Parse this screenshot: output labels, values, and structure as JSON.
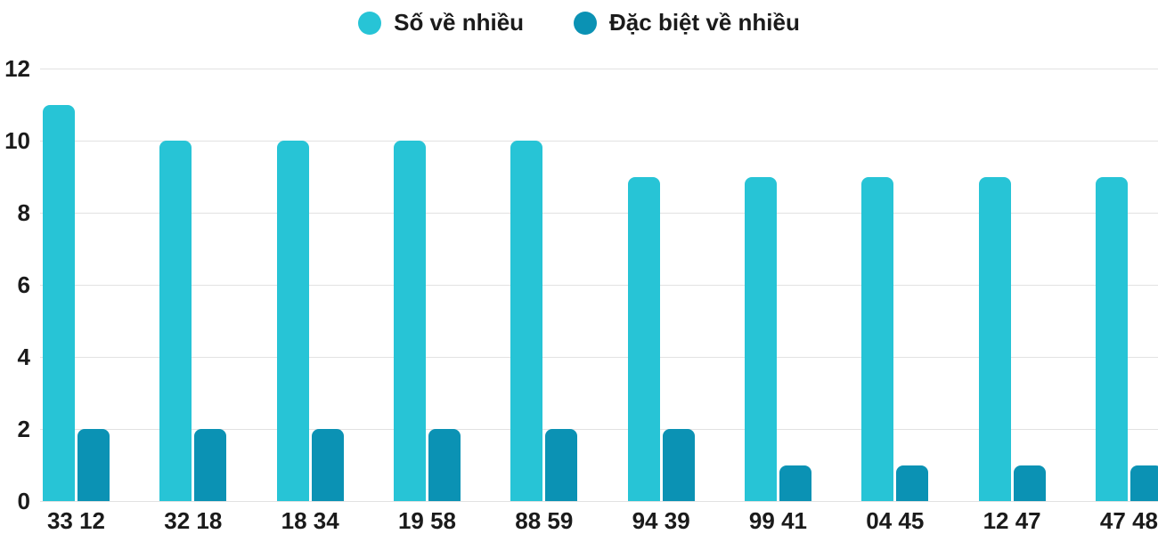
{
  "chart_data": {
    "type": "bar",
    "title": "",
    "categories": [
      "33 12",
      "32 18",
      "18 34",
      "19 58",
      "88 59",
      "94 39",
      "99 41",
      "04 45",
      "12 47",
      "47 48"
    ],
    "series": [
      {
        "name": "Số về nhiều",
        "color": "#27c4d6",
        "values": [
          11,
          10,
          10,
          10,
          10,
          9,
          9,
          9,
          9,
          9
        ]
      },
      {
        "name": "Đặc biệt về nhiều",
        "color": "#0b92b4",
        "values": [
          2,
          2,
          2,
          2,
          2,
          2,
          1,
          1,
          1,
          1
        ]
      }
    ],
    "xlabel": "",
    "ylabel": "",
    "ylim": [
      0,
      12
    ],
    "yticks": [
      0,
      2,
      4,
      6,
      8,
      10,
      12
    ],
    "grid": "horizontal",
    "legend_position": "top-center"
  },
  "colors": {
    "background": "#ffffff",
    "gridline": "#e2e2e2",
    "text": "#1b1b1b",
    "series_1": "#27c4d6",
    "series_2": "#0b92b4"
  }
}
